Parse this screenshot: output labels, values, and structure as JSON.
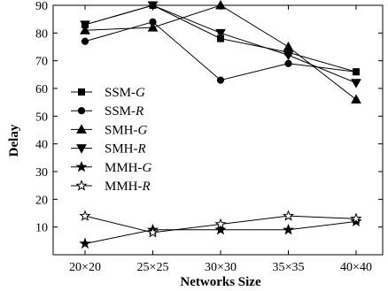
{
  "chart_data": {
    "type": "line",
    "title": "",
    "xlabel": "Networks Size",
    "ylabel": "Delay",
    "categories": [
      "20×20",
      "25×25",
      "30×30",
      "35×35",
      "40×40"
    ],
    "ylim": [
      0,
      90
    ],
    "yticks": [
      10,
      20,
      30,
      40,
      50,
      60,
      70,
      80,
      90
    ],
    "grid": false,
    "legend_position": "center-left",
    "series": [
      {
        "name": "SSM-",
        "name_italic": "G",
        "marker": "square",
        "values": [
          83,
          90,
          78,
          73,
          66
        ]
      },
      {
        "name": "SSM-",
        "name_italic": "R",
        "marker": "circle",
        "values": [
          77,
          84,
          63,
          69,
          66
        ]
      },
      {
        "name": "SMH-",
        "name_italic": "G",
        "marker": "triangle-up",
        "values": [
          81,
          82,
          90,
          75,
          56
        ]
      },
      {
        "name": "SMH-",
        "name_italic": "R",
        "marker": "triangle-down",
        "values": [
          83,
          90,
          80,
          72,
          62
        ]
      },
      {
        "name": "MMH-",
        "name_italic": "G",
        "marker": "star-filled",
        "values": [
          4,
          9,
          9,
          9,
          12
        ]
      },
      {
        "name": "MMH-",
        "name_italic": "R",
        "marker": "star-open",
        "values": [
          14,
          8,
          11,
          14,
          13
        ]
      }
    ]
  }
}
